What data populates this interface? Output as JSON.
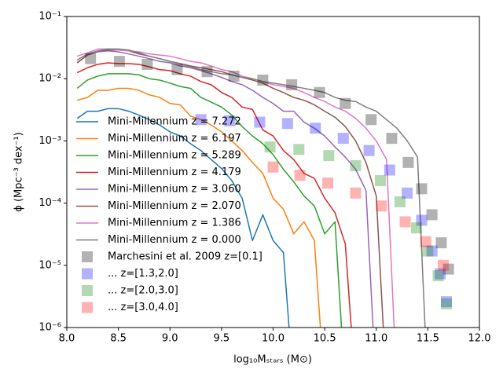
{
  "chart_data": {
    "type": "line",
    "xlabel": "log₁₀Mₛₜₐᵣₛ (M⊙)",
    "ylabel": "ϕ (Mpc⁻³ dex⁻¹)",
    "xlim": [
      8,
      12
    ],
    "ylim": [
      1e-06,
      0.1
    ],
    "log_y": true,
    "grid": false,
    "legend": "lower left",
    "xticks": [
      {
        "value": 8,
        "label": "8.0"
      },
      {
        "value": 8.5,
        "label": "8.5"
      },
      {
        "value": 9,
        "label": "9.0"
      },
      {
        "value": 9.5,
        "label": "9.5"
      },
      {
        "value": 10,
        "label": "10.0"
      },
      {
        "value": 10.5,
        "label": "10.5"
      },
      {
        "value": 11,
        "label": "11.0"
      },
      {
        "value": 11.5,
        "label": "11.5"
      },
      {
        "value": 12,
        "label": "12.0"
      }
    ],
    "yticks": [
      {
        "value": 1e-06,
        "label": "10⁻⁶"
      },
      {
        "value": 1e-05,
        "label": "10⁻⁵"
      },
      {
        "value": 0.0001,
        "label": "10⁻⁴"
      },
      {
        "value": 0.001,
        "label": "10⁻³"
      },
      {
        "value": 0.01,
        "label": "10⁻²"
      },
      {
        "value": 0.1,
        "label": "10⁻¹"
      }
    ],
    "series": [
      {
        "name": "Mini-Millennium z = 7.272",
        "type": "line",
        "color": "#1f77b4",
        "x": [
          8.1,
          8.2,
          8.3,
          8.4,
          8.5,
          8.6,
          8.7,
          8.8,
          8.9,
          9.0,
          9.1,
          9.2,
          9.3,
          9.4,
          9.5,
          9.6,
          9.7,
          9.8,
          9.9,
          10.0,
          10.1,
          10.2
        ],
        "values": [
          0.0023,
          0.003,
          0.003,
          0.0033,
          0.0033,
          0.003,
          0.0026,
          0.0022,
          0.0018,
          0.0014,
          0.0012,
          0.0009,
          0.0007,
          0.0005,
          0.00036,
          0.00023,
          0.00012,
          2.5e-05,
          6.5e-05,
          2.5e-05,
          1.6e-05,
          1e-07
        ]
      },
      {
        "name": "Mini-Millennium z = 6.197",
        "type": "line",
        "color": "#ff7f0e",
        "x": [
          8.1,
          8.2,
          8.3,
          8.4,
          8.5,
          8.6,
          8.7,
          8.8,
          8.9,
          9.0,
          9.1,
          9.2,
          9.3,
          9.4,
          9.5,
          9.6,
          9.7,
          9.8,
          9.9,
          10.0,
          10.1,
          10.2,
          10.3,
          10.4,
          10.5
        ],
        "values": [
          0.0045,
          0.005,
          0.0065,
          0.0065,
          0.007,
          0.007,
          0.0065,
          0.0055,
          0.005,
          0.004,
          0.0038,
          0.0025,
          0.0022,
          0.0018,
          0.0014,
          0.001,
          0.0007,
          0.00045,
          0.0003,
          0.00012,
          8e-05,
          3.2e-05,
          5e-05,
          2.5e-05,
          1e-07
        ]
      },
      {
        "name": "Mini-Millennium z = 5.289",
        "type": "line",
        "color": "#2ca02c",
        "x": [
          8.1,
          8.2,
          8.3,
          8.4,
          8.5,
          8.6,
          8.7,
          8.8,
          8.9,
          9.0,
          9.1,
          9.2,
          9.3,
          9.4,
          9.5,
          9.6,
          9.7,
          9.8,
          9.9,
          10.0,
          10.1,
          10.2,
          10.3,
          10.4,
          10.5,
          10.6,
          10.7
        ],
        "values": [
          0.007,
          0.0095,
          0.011,
          0.012,
          0.012,
          0.012,
          0.0115,
          0.01,
          0.0095,
          0.0085,
          0.0075,
          0.007,
          0.005,
          0.0042,
          0.0035,
          0.0026,
          0.0017,
          0.0012,
          0.0009,
          0.0006,
          0.00035,
          0.00022,
          0.00013,
          9e-05,
          3.2e-05,
          5e-05,
          1e-07
        ]
      },
      {
        "name": "Mini-Millennium z = 4.179",
        "type": "line",
        "color": "#d62728",
        "x": [
          8.1,
          8.2,
          8.3,
          8.4,
          8.5,
          8.6,
          8.7,
          8.8,
          8.9,
          9.0,
          9.1,
          9.2,
          9.3,
          9.4,
          9.5,
          9.6,
          9.7,
          9.8,
          9.9,
          10.0,
          10.1,
          10.2,
          10.3,
          10.4,
          10.5,
          10.6,
          10.7,
          10.8
        ],
        "values": [
          0.0125,
          0.015,
          0.017,
          0.018,
          0.0175,
          0.0175,
          0.017,
          0.0155,
          0.014,
          0.0135,
          0.012,
          0.011,
          0.009,
          0.008,
          0.006,
          0.005,
          0.0035,
          0.0032,
          0.0015,
          0.0012,
          0.0007,
          0.0005,
          0.0003,
          0.00025,
          0.00012,
          7e-05,
          2.2e-05,
          1e-07
        ]
      },
      {
        "name": "Mini-Millennium z = 3.060",
        "type": "line",
        "color": "#9467bd",
        "x": [
          8.1,
          8.2,
          8.3,
          8.4,
          8.5,
          8.6,
          8.7,
          8.8,
          8.9,
          9.0,
          9.1,
          9.2,
          9.3,
          9.4,
          9.5,
          9.6,
          9.7,
          9.8,
          9.9,
          10.0,
          10.1,
          10.2,
          10.3,
          10.4,
          10.5,
          10.6,
          10.7,
          10.8,
          10.9,
          11.0
        ],
        "values": [
          0.018,
          0.024,
          0.027,
          0.028,
          0.027,
          0.025,
          0.023,
          0.021,
          0.019,
          0.018,
          0.016,
          0.015,
          0.0135,
          0.012,
          0.0105,
          0.009,
          0.008,
          0.0065,
          0.005,
          0.004,
          0.003,
          0.003,
          0.002,
          0.0016,
          0.0012,
          0.0008,
          0.00055,
          0.00035,
          0.00016,
          1e-07
        ]
      },
      {
        "name": "Mini-Millennium z = 2.070",
        "type": "line",
        "color": "#8c564b",
        "x": [
          8.1,
          8.2,
          8.3,
          8.4,
          8.5,
          8.6,
          8.7,
          8.8,
          8.9,
          9.0,
          9.1,
          9.2,
          9.3,
          9.4,
          9.5,
          9.6,
          9.7,
          9.8,
          9.9,
          10.0,
          10.1,
          10.2,
          10.3,
          10.4,
          10.5,
          10.6,
          10.7,
          10.8,
          10.9,
          11.0,
          11.1
        ],
        "values": [
          0.018,
          0.024,
          0.028,
          0.029,
          0.029,
          0.028,
          0.025,
          0.023,
          0.021,
          0.019,
          0.0175,
          0.016,
          0.015,
          0.014,
          0.013,
          0.0115,
          0.0105,
          0.0095,
          0.0085,
          0.007,
          0.006,
          0.005,
          0.0045,
          0.0038,
          0.003,
          0.0024,
          0.0017,
          0.001,
          0.00045,
          0.00013,
          1e-07
        ]
      },
      {
        "name": "Mini-Millennium z = 1.386",
        "type": "line",
        "color": "#e377c2",
        "x": [
          8.1,
          8.2,
          8.3,
          8.4,
          8.5,
          8.6,
          8.7,
          8.8,
          8.9,
          9.0,
          9.1,
          9.2,
          9.3,
          9.4,
          9.5,
          9.6,
          9.7,
          9.8,
          9.9,
          10.0,
          10.1,
          10.2,
          10.3,
          10.4,
          10.5,
          10.6,
          10.7,
          10.8,
          10.9,
          11.0,
          11.1,
          11.2
        ],
        "values": [
          0.023,
          0.026,
          0.03,
          0.03,
          0.029,
          0.028,
          0.027,
          0.025,
          0.024,
          0.023,
          0.021,
          0.019,
          0.018,
          0.016,
          0.014,
          0.013,
          0.011,
          0.01,
          0.009,
          0.008,
          0.0075,
          0.007,
          0.006,
          0.005,
          0.0043,
          0.0035,
          0.003,
          0.0023,
          0.0016,
          0.001,
          0.0005,
          1e-07
        ]
      },
      {
        "name": "Mini-Millennium z = 0.000",
        "type": "line",
        "color": "#7f7f7f",
        "x": [
          8.1,
          8.2,
          8.3,
          8.4,
          8.5,
          8.6,
          8.7,
          8.8,
          8.9,
          9.0,
          9.1,
          9.2,
          9.3,
          9.4,
          9.5,
          9.6,
          9.7,
          9.8,
          9.9,
          10.0,
          10.1,
          10.2,
          10.3,
          10.4,
          10.5,
          10.6,
          10.7,
          10.8,
          10.9,
          11.0,
          11.1,
          11.2,
          11.3,
          11.4,
          11.5
        ],
        "values": [
          0.02,
          0.025,
          0.028,
          0.03,
          0.03,
          0.029,
          0.026,
          0.023,
          0.021,
          0.019,
          0.017,
          0.0155,
          0.014,
          0.013,
          0.012,
          0.0115,
          0.0105,
          0.01,
          0.009,
          0.0085,
          0.008,
          0.0075,
          0.007,
          0.0065,
          0.006,
          0.005,
          0.0045,
          0.0043,
          0.0035,
          0.003,
          0.0022,
          0.0016,
          0.001,
          0.00055,
          1e-07
        ]
      },
      {
        "name": "Marchesini et al. 2009 z=[0.1]",
        "type": "scatter",
        "color": "#000000",
        "alpha": 0.3,
        "x": [
          8.23,
          8.51,
          8.78,
          9.07,
          9.36,
          9.62,
          9.9,
          10.18,
          10.45,
          10.7,
          10.95,
          11.15,
          11.31,
          11.44,
          11.54,
          11.63,
          11.7
        ],
        "values": [
          0.021,
          0.019,
          0.017,
          0.014,
          0.013,
          0.011,
          0.0095,
          0.008,
          0.006,
          0.004,
          0.0022,
          0.0011,
          0.00045,
          0.00017,
          6.5e-05,
          2.3e-05,
          8.7e-06
        ]
      },
      {
        "name": "... z=[1.3,2.0]",
        "type": "scatter",
        "color": "#0000ff",
        "alpha": 0.3,
        "x": [
          9.3,
          9.58,
          9.87,
          10.14,
          10.41,
          10.68,
          10.93,
          11.13,
          11.3,
          11.44,
          11.54,
          11.62,
          11.68
        ],
        "values": [
          0.0022,
          0.0021,
          0.002,
          0.0019,
          0.0016,
          0.0011,
          0.0007,
          0.00034,
          0.000145,
          5.3e-05,
          1.7e-05,
          7.3e-06,
          2.6e-06
        ]
      },
      {
        "name": "... z=[2.0,3.0]",
        "type": "scatter",
        "color": "#008000",
        "alpha": 0.3,
        "x": [
          9.97,
          10.25,
          10.54,
          10.8,
          11.04,
          11.23,
          11.39,
          11.5,
          11.6,
          11.68
        ],
        "values": [
          0.0008,
          0.00073,
          0.00058,
          0.0004,
          0.00023,
          0.000105,
          4e-05,
          1.7e-05,
          6.8e-06,
          2.4e-06
        ]
      },
      {
        "name": "... z=[3.0,4.0]",
        "type": "scatter",
        "color": "#ff0000",
        "alpha": 0.3,
        "x": [
          10.0,
          10.26,
          10.53,
          10.8,
          11.05,
          11.28,
          11.48,
          11.65
        ],
        "values": [
          0.00038,
          0.00028,
          0.00021,
          0.000145,
          9e-05,
          5e-05,
          2.4e-05,
          1e-05
        ]
      }
    ]
  }
}
